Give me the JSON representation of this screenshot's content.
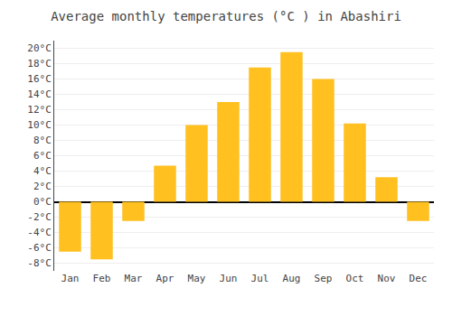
{
  "chart_data": {
    "type": "bar",
    "title": "Average monthly temperatures (°C ) in Abashiri",
    "categories": [
      "Jan",
      "Feb",
      "Mar",
      "Apr",
      "May",
      "Jun",
      "Jul",
      "Aug",
      "Sep",
      "Oct",
      "Nov",
      "Dec"
    ],
    "values": [
      -6.5,
      -7.5,
      -2.5,
      4.7,
      10.0,
      13.0,
      17.5,
      19.5,
      16.0,
      10.2,
      3.2,
      -2.5
    ],
    "color": "#FFC020",
    "ylim": [
      -9,
      21
    ],
    "yticks": [
      {
        "value": -8,
        "label": "-8°C"
      },
      {
        "value": -6,
        "label": "-6°C"
      },
      {
        "value": -4,
        "label": "-4°C"
      },
      {
        "value": -2,
        "label": "-2°C"
      },
      {
        "value": 0,
        "label": "0°C"
      },
      {
        "value": 2,
        "label": "2°C"
      },
      {
        "value": 4,
        "label": "4°C"
      },
      {
        "value": 6,
        "label": "6°C"
      },
      {
        "value": 8,
        "label": "8°C"
      },
      {
        "value": 10,
        "label": "10°C"
      },
      {
        "value": 12,
        "label": "12°C"
      },
      {
        "value": 14,
        "label": "14°C"
      },
      {
        "value": 16,
        "label": "16°C"
      },
      {
        "value": 18,
        "label": "18°C"
      },
      {
        "value": 20,
        "label": "20°C"
      }
    ],
    "grid": true
  }
}
